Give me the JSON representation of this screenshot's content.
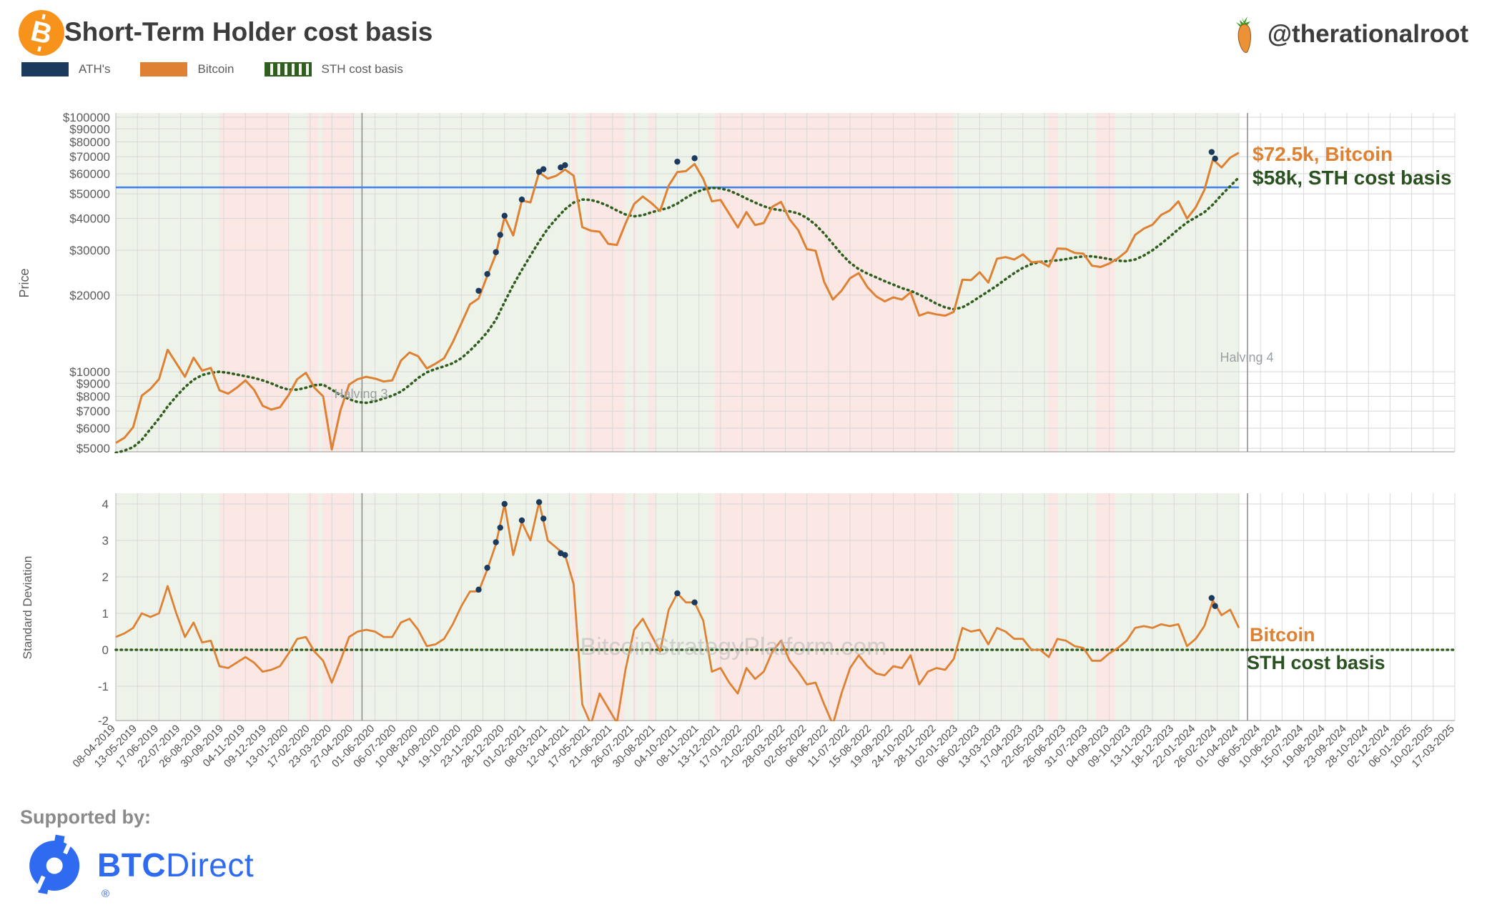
{
  "header": {
    "title": "Short-Term Holder cost basis",
    "handle": "@therationalroot",
    "logo_letter": "B"
  },
  "legend": {
    "items": [
      {
        "label": "ATH's",
        "color": "#1c3a5e",
        "style": "solid"
      },
      {
        "label": "Bitcoin",
        "color": "#de8133",
        "style": "solid"
      },
      {
        "label": "STH cost basis",
        "color": "#2f5e1e",
        "style": "dotted"
      }
    ]
  },
  "watermark": "BitcoinStrategyPlatform.com",
  "footer": {
    "supported_by": "Supported by:",
    "brand_bold": "BTC",
    "brand_regular": "Direct",
    "registered": "®"
  },
  "chart_data": [
    {
      "type": "line",
      "name": "price-panel",
      "ylabel": "Price",
      "yscale": "log",
      "ylim": [
        4800,
        100000
      ],
      "ytick_values": [
        100000,
        90000,
        80000,
        70000,
        60000,
        50000,
        40000,
        30000,
        20000,
        10000,
        9000,
        8000,
        7000,
        6000,
        5000
      ],
      "ytick_labels": [
        "$100000",
        "$90000",
        "$80000",
        "$70000",
        "$60000",
        "$50000",
        "$40000",
        "$30000",
        "$20000",
        "$10000",
        "$9000",
        "$8000",
        "$7000",
        "$6000",
        "$5000"
      ],
      "x_tick_labels": [
        "08-04-2019",
        "13-05-2019",
        "17-06-2019",
        "22-07-2019",
        "26-08-2019",
        "30-09-2019",
        "04-11-2019",
        "09-12-2019",
        "13-01-2020",
        "17-02-2020",
        "23-03-2020",
        "27-04-2020",
        "01-06-2020",
        "06-07-2020",
        "10-08-2020",
        "14-09-2020",
        "19-10-2020",
        "23-11-2020",
        "28-12-2020",
        "01-02-2021",
        "08-03-2021",
        "12-04-2021",
        "17-05-2021",
        "21-06-2021",
        "26-07-2021",
        "30-08-2021",
        "04-10-2021",
        "08-11-2021",
        "13-12-2021",
        "17-01-2022",
        "21-02-2022",
        "28-03-2022",
        "02-05-2022",
        "06-06-2022",
        "11-07-2022",
        "15-08-2022",
        "19-09-2022",
        "24-10-2022",
        "28-11-2022",
        "02-01-2023",
        "06-02-2023",
        "13-03-2023",
        "17-04-2023",
        "22-05-2023",
        "26-06-2023",
        "31-07-2023",
        "04-09-2023",
        "09-10-2023",
        "13-11-2023",
        "18-12-2023",
        "22-01-2024",
        "26-02-2024",
        "01-04-2024",
        "06-05-2024",
        "10-06-2024",
        "15-07-2024",
        "19-08-2024",
        "23-09-2024",
        "28-10-2024",
        "02-12-2024",
        "06-01-2025",
        "10-02-2025",
        "17-03-2025"
      ],
      "weeks_per_tick": 5,
      "week_step_of_series": 2,
      "ath_level_line": {
        "value": 53000,
        "color": "#3b7ff0"
      },
      "halvings": [
        {
          "label": "Halving 3",
          "week": 57,
          "date": "11-05-2020"
        },
        {
          "label": "Halving 4",
          "week": 262,
          "date": "20-04-2024"
        }
      ],
      "bands": {
        "above_color": "#eef3e9",
        "below_color": "#fbe7e4",
        "data_end_week": 260,
        "below_ranges_weeks": [
          [
            24,
            40
          ],
          [
            44.3,
            46.8
          ],
          [
            47.8,
            54.8
          ],
          [
            105.6,
            106.4
          ],
          [
            108.9,
            117.8
          ],
          [
            119.8,
            120.5
          ],
          [
            123.3,
            124.8
          ],
          [
            138.7,
            194
          ],
          [
            215.7,
            218.1
          ],
          [
            226.9,
            231.2
          ]
        ]
      },
      "series": [
        {
          "name": "Bitcoin",
          "color": "#de8133",
          "style": "solid",
          "values": [
            5250,
            5500,
            6050,
            8050,
            8550,
            9350,
            12200,
            10800,
            9550,
            11350,
            10100,
            10350,
            8450,
            8200,
            8650,
            9250,
            8500,
            7350,
            7100,
            7250,
            8100,
            9350,
            9900,
            8650,
            8000,
            4950,
            7050,
            8900,
            9350,
            9550,
            9400,
            9150,
            9250,
            11050,
            11900,
            11500,
            10300,
            10750,
            11300,
            13050,
            15500,
            18400,
            19400,
            23800,
            29000,
            40500,
            34300,
            47000,
            46300,
            60800,
            57400,
            58900,
            62300,
            58900,
            37000,
            35800,
            35500,
            31800,
            31500,
            38200,
            45600,
            48800,
            46000,
            42800,
            53900,
            60900,
            61400,
            65500,
            57200,
            46700,
            47300,
            41800,
            36900,
            42400,
            37700,
            38400,
            44500,
            46500,
            39700,
            36000,
            30300,
            29900,
            22500,
            19200,
            20800,
            23300,
            24400,
            21500,
            19800,
            18900,
            19600,
            19200,
            20500,
            16600,
            17100,
            16800,
            16600,
            17200,
            23000,
            22900,
            24600,
            22400,
            27800,
            28200,
            27600,
            28900,
            26900,
            27100,
            25900,
            30500,
            30400,
            29300,
            29100,
            26100,
            25800,
            26600,
            27900,
            29700,
            34500,
            36500,
            37800,
            41300,
            43000,
            46700,
            40000,
            44200,
            51700,
            68300,
            63500,
            69400,
            72500
          ]
        },
        {
          "name": "STH cost basis",
          "color": "#2f5e1e",
          "style": "dotted",
          "values": [
            4800,
            4900,
            5050,
            5400,
            5950,
            6550,
            7300,
            8000,
            8700,
            9300,
            9700,
            9900,
            10000,
            9900,
            9750,
            9600,
            9450,
            9250,
            9000,
            8700,
            8500,
            8500,
            8650,
            8850,
            8900,
            8500,
            8100,
            7800,
            7600,
            7550,
            7650,
            7850,
            8050,
            8350,
            8850,
            9450,
            9950,
            10250,
            10500,
            10800,
            11300,
            12100,
            13100,
            14300,
            16000,
            18800,
            21900,
            25100,
            28600,
            32500,
            36500,
            40000,
            43500,
            46200,
            47500,
            47300,
            46300,
            44800,
            43000,
            41500,
            40800,
            41200,
            42300,
            43200,
            44100,
            45800,
            48200,
            50400,
            52000,
            52800,
            52500,
            51500,
            49800,
            47900,
            46200,
            44700,
            43600,
            43100,
            42700,
            41900,
            40200,
            37800,
            34900,
            31800,
            29000,
            26800,
            25300,
            24300,
            23500,
            22700,
            22000,
            21300,
            20800,
            20100,
            19300,
            18500,
            17900,
            17600,
            17900,
            18700,
            19700,
            20700,
            21800,
            23100,
            24400,
            25600,
            26500,
            27000,
            27200,
            27400,
            27700,
            28100,
            28400,
            28400,
            28100,
            27700,
            27300,
            27200,
            27600,
            28600,
            30000,
            31800,
            33900,
            36300,
            38600,
            40400,
            42300,
            45400,
            49500,
            53600,
            58000
          ]
        }
      ],
      "ath_markers": {
        "color": "#1c3a5e",
        "points": [
          [
            84,
            20800
          ],
          [
            86,
            24200
          ],
          [
            88,
            29500
          ],
          [
            89,
            34500
          ],
          [
            90,
            41000
          ],
          [
            94,
            47500
          ],
          [
            98,
            61000
          ],
          [
            99,
            62500
          ],
          [
            103,
            63500
          ],
          [
            104,
            64800
          ],
          [
            130,
            66900
          ],
          [
            134,
            69000
          ],
          [
            253.7,
            73000
          ],
          [
            254.5,
            68800
          ]
        ]
      },
      "annotations": [
        {
          "text": "$72.5k, Bitcoin",
          "color": "#de8133"
        },
        {
          "text": "$58k, STH cost basis",
          "color": "#2a5220"
        }
      ]
    },
    {
      "type": "line",
      "name": "std-dev-panel",
      "ylabel": "Standard Deviation",
      "ylim": [
        -2.05,
        4.3
      ],
      "ytick_values": [
        4,
        3,
        2,
        1,
        0,
        -1,
        -2
      ],
      "ytick_labels": [
        "4",
        "3",
        "2",
        "1",
        "0",
        "-1",
        "-2"
      ],
      "series": [
        {
          "name": "Bitcoin",
          "color": "#de8133",
          "style": "solid",
          "values": [
            0.35,
            0.45,
            0.6,
            1.0,
            0.9,
            1.0,
            1.75,
            1.0,
            0.35,
            0.75,
            0.2,
            0.25,
            -0.45,
            -0.5,
            -0.35,
            -0.2,
            -0.35,
            -0.6,
            -0.55,
            -0.45,
            -0.1,
            0.3,
            0.35,
            -0.05,
            -0.3,
            -0.9,
            -0.3,
            0.35,
            0.5,
            0.55,
            0.5,
            0.35,
            0.35,
            0.75,
            0.85,
            0.55,
            0.1,
            0.15,
            0.3,
            0.7,
            1.2,
            1.6,
            1.6,
            2.2,
            2.9,
            4.0,
            2.6,
            3.5,
            3.0,
            4.05,
            3.0,
            2.8,
            2.6,
            1.8,
            -1.5,
            -2.05,
            -1.2,
            -1.6,
            -2.0,
            -0.55,
            0.55,
            0.85,
            0.4,
            -0.05,
            1.1,
            1.55,
            1.3,
            1.3,
            0.8,
            -0.6,
            -0.5,
            -0.9,
            -1.2,
            -0.5,
            -0.8,
            -0.6,
            -0.05,
            0.25,
            -0.3,
            -0.6,
            -0.95,
            -0.9,
            -1.5,
            -2.05,
            -1.2,
            -0.5,
            -0.15,
            -0.45,
            -0.65,
            -0.7,
            -0.45,
            -0.5,
            -0.15,
            -0.95,
            -0.6,
            -0.5,
            -0.55,
            -0.25,
            0.6,
            0.5,
            0.55,
            0.15,
            0.6,
            0.5,
            0.3,
            0.3,
            0.0,
            0.0,
            -0.2,
            0.3,
            0.25,
            0.1,
            0.05,
            -0.3,
            -0.3,
            -0.1,
            0.05,
            0.25,
            0.6,
            0.65,
            0.6,
            0.7,
            0.65,
            0.7,
            0.1,
            0.3,
            0.65,
            1.35,
            0.95,
            1.1,
            0.6
          ]
        },
        {
          "name": "STH cost basis",
          "color": "#2f5e1e",
          "style": "dotted",
          "constant": 0
        }
      ],
      "ath_markers": {
        "color": "#1c3a5e",
        "points": [
          [
            84,
            1.65
          ],
          [
            86,
            2.25
          ],
          [
            88,
            2.95
          ],
          [
            89,
            3.35
          ],
          [
            90,
            4.0
          ],
          [
            94,
            3.55
          ],
          [
            98,
            4.05
          ],
          [
            99,
            3.6
          ],
          [
            103,
            2.65
          ],
          [
            104,
            2.6
          ],
          [
            130,
            1.55
          ],
          [
            134,
            1.3
          ],
          [
            253.7,
            1.42
          ],
          [
            254.5,
            1.2
          ]
        ]
      },
      "right_labels": [
        {
          "text": "Bitcoin",
          "color": "#de8133"
        },
        {
          "text": "STH cost basis",
          "color": "#2a5220"
        }
      ]
    }
  ]
}
